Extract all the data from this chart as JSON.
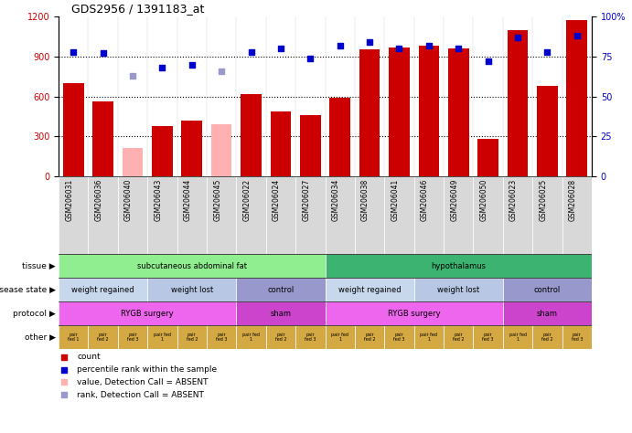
{
  "title": "GDS2956 / 1391183_at",
  "samples": [
    "GSM206031",
    "GSM206036",
    "GSM206040",
    "GSM206043",
    "GSM206044",
    "GSM206045",
    "GSM206022",
    "GSM206024",
    "GSM206027",
    "GSM206034",
    "GSM206038",
    "GSM206041",
    "GSM206046",
    "GSM206049",
    "GSM206050",
    "GSM206023",
    "GSM206025",
    "GSM206028"
  ],
  "count_values": [
    700,
    560,
    0,
    380,
    420,
    0,
    620,
    490,
    460,
    590,
    950,
    970,
    980,
    960,
    280,
    1100,
    680,
    1175
  ],
  "count_absent": [
    false,
    false,
    true,
    false,
    false,
    true,
    false,
    false,
    false,
    false,
    false,
    false,
    false,
    false,
    false,
    false,
    false,
    false
  ],
  "absent_count_values": [
    0,
    0,
    215,
    0,
    0,
    390,
    0,
    0,
    0,
    0,
    0,
    0,
    0,
    0,
    0,
    0,
    0,
    0
  ],
  "percentile_values": [
    78,
    77,
    0,
    68,
    70,
    0,
    78,
    80,
    74,
    82,
    84,
    80,
    82,
    80,
    72,
    87,
    78,
    88
  ],
  "percentile_absent": [
    false,
    false,
    true,
    false,
    false,
    true,
    false,
    false,
    false,
    false,
    false,
    false,
    false,
    false,
    false,
    false,
    false,
    false
  ],
  "absent_percentile_values": [
    0,
    0,
    63,
    0,
    0,
    66,
    0,
    0,
    0,
    0,
    0,
    0,
    0,
    0,
    0,
    0,
    0,
    0
  ],
  "ylim_left": [
    0,
    1200
  ],
  "ylim_right": [
    0,
    100
  ],
  "yticks_left": [
    0,
    300,
    600,
    900,
    1200
  ],
  "yticks_right": [
    0,
    25,
    50,
    75,
    100
  ],
  "bar_color_present": "#cc0000",
  "bar_color_absent": "#ffb0b0",
  "dot_color_present": "#0000cc",
  "dot_color_absent": "#9999cc",
  "tissue_segments": [
    {
      "text": "subcutaneous abdominal fat",
      "start": 0,
      "end": 9,
      "color": "#90ee90"
    },
    {
      "text": "hypothalamus",
      "start": 9,
      "end": 18,
      "color": "#3cb371"
    }
  ],
  "disease_segments": [
    {
      "text": "weight regained",
      "start": 0,
      "end": 3,
      "color": "#c8d8ec"
    },
    {
      "text": "weight lost",
      "start": 3,
      "end": 6,
      "color": "#b8c8e4"
    },
    {
      "text": "control",
      "start": 6,
      "end": 9,
      "color": "#9898cc"
    },
    {
      "text": "weight regained",
      "start": 9,
      "end": 12,
      "color": "#c8d8ec"
    },
    {
      "text": "weight lost",
      "start": 12,
      "end": 15,
      "color": "#b8c8e4"
    },
    {
      "text": "control",
      "start": 15,
      "end": 18,
      "color": "#9898cc"
    }
  ],
  "protocol_segments": [
    {
      "text": "RYGB surgery",
      "start": 0,
      "end": 6,
      "color": "#ee66ee"
    },
    {
      "text": "sham",
      "start": 6,
      "end": 9,
      "color": "#cc44cc"
    },
    {
      "text": "RYGB surgery",
      "start": 9,
      "end": 15,
      "color": "#ee66ee"
    },
    {
      "text": "sham",
      "start": 15,
      "end": 18,
      "color": "#cc44cc"
    }
  ],
  "other_cells": [
    "pair\nfed 1",
    "pair\nfed 2",
    "pair\nfed 3",
    "pair fed\n1",
    "pair\nfed 2",
    "pair\nfed 3",
    "pair fed\n1",
    "pair\nfed 2",
    "pair\nfed 3",
    "pair fed\n1",
    "pair\nfed 2",
    "pair\nfed 3",
    "pair fed\n1",
    "pair\nfed 2",
    "pair\nfed 3",
    "pair fed\n1",
    "pair\nfed 2",
    "pair\nfed 3"
  ],
  "other_color": "#d4a843",
  "legend_items": [
    {
      "color": "#cc0000",
      "label": "count"
    },
    {
      "color": "#0000cc",
      "label": "percentile rank within the sample"
    },
    {
      "color": "#ffb0b0",
      "label": "value, Detection Call = ABSENT"
    },
    {
      "color": "#9999cc",
      "label": "rank, Detection Call = ABSENT"
    }
  ]
}
